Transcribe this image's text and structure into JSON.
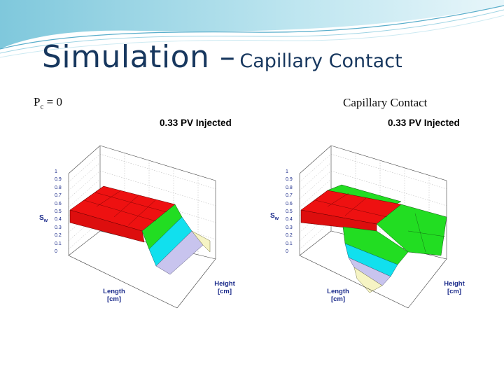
{
  "slide": {
    "title_main": "Simulation –",
    "title_sub": "Capillary Contact"
  },
  "left": {
    "label_main": "P",
    "label_sub": "c",
    "label_rest": " = 0",
    "plot_title": "0.33 PV Injected",
    "z_label_main": "S",
    "z_label_sub": "w",
    "x_label_1": "Length",
    "x_label_2": "[cm]",
    "y_label_1": "Height",
    "y_label_2": "[cm]"
  },
  "right": {
    "label": "Capillary Contact",
    "plot_title": "0.33 PV Injected",
    "z_label_main": "S",
    "z_label_sub": "w",
    "x_label_1": "Length",
    "x_label_2": "[cm]",
    "y_label_1": "Height",
    "y_label_2": "[cm]"
  },
  "z_ticks": [
    "1",
    "0.9",
    "0.8",
    "0.7",
    "0.6",
    "0.5",
    "0.4",
    "0.3",
    "0.2",
    "0.1",
    "0"
  ],
  "colors": {
    "title": "#17375e",
    "red": "#ee1111",
    "green": "#22dd22",
    "cyan": "#11e0ee",
    "lavender": "#c8c4ee",
    "yellow": "#f6f4c4",
    "axis_text": "#1a2a8a"
  }
}
